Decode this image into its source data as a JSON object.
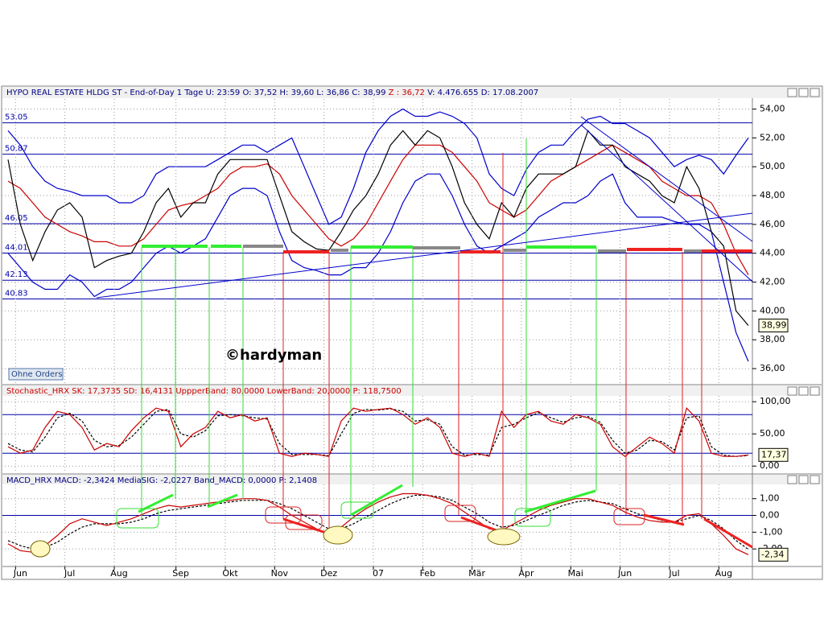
{
  "chart_data": [
    {
      "type": "line",
      "header": "HYPO REAL ESTATE HLDG ST - End-of-Day 1 Tage  U: 23:59  O: 37,52  H: 39,60  L: 36,86  C: 38,99",
      "header_z": "Z : 36,72",
      "header_rest": "V: 4.476.655  D: 17.08.2007",
      "watermark": "©hardyman",
      "button": "Ohne Orders",
      "last_label": "38,99",
      "ylim": [
        35,
        54.7
      ],
      "yticks": [
        {
          "value": 36,
          "label": "36,00"
        },
        {
          "value": 38,
          "label": "38,00"
        },
        {
          "value": 40,
          "label": "40,00"
        },
        {
          "value": 42,
          "label": "42,00"
        },
        {
          "value": 44,
          "label": "44,00"
        },
        {
          "value": 46,
          "label": "46,00"
        },
        {
          "value": 48,
          "label": "48,00"
        },
        {
          "value": 50,
          "label": "50,00"
        },
        {
          "value": 52,
          "label": "52,00"
        },
        {
          "value": 54,
          "label": "54,00"
        }
      ],
      "grid": true,
      "levels": [
        53.05,
        50.87,
        46.05,
        44.01,
        42.13,
        40.83
      ],
      "series": [
        {
          "color": "#0000cc",
          "values": [
            52.5,
            51.5,
            50,
            49,
            48.5,
            48.3,
            48,
            48,
            48,
            47.5,
            47.5,
            48,
            49.5,
            50,
            50,
            50,
            50,
            50.5,
            51,
            51.5,
            51.5,
            51,
            51.5,
            52,
            50,
            48,
            46,
            46.5,
            48.5,
            51,
            52.5,
            53.5,
            54,
            53.5,
            53.5,
            53.8,
            53.5,
            53,
            52,
            49.5,
            48.5,
            48,
            49.8,
            51,
            51.5,
            51.5,
            52.5,
            53.3,
            53.5,
            53,
            53,
            52.5,
            52,
            51,
            50,
            50.5,
            50.8,
            50.5,
            49.5,
            50.8,
            52
          ]
        },
        {
          "color": "#0000cc",
          "values": [
            44,
            43,
            42,
            41.5,
            41.5,
            42.5,
            42,
            41,
            41.5,
            41.5,
            42,
            43,
            44,
            44.5,
            44,
            44.5,
            45,
            46.5,
            48,
            48.5,
            48.5,
            48,
            45.5,
            43.5,
            43,
            42.8,
            42.5,
            42.5,
            43,
            43,
            44,
            45.5,
            47.5,
            49,
            49.5,
            49.5,
            48,
            46,
            44.5,
            44,
            44.5,
            45,
            45.5,
            46.5,
            47,
            47.5,
            47.5,
            48,
            49,
            49.5,
            47.5,
            46.5,
            46.5,
            46.5,
            46.2,
            46,
            46,
            45.5,
            42,
            38.5,
            36.5
          ]
        },
        {
          "color": "#cc0000",
          "values": [
            49,
            48.5,
            47.5,
            46.5,
            46,
            45.5,
            45.2,
            44.8,
            44.8,
            44.5,
            44.5,
            45,
            46,
            47,
            47.3,
            47.5,
            48,
            48.5,
            49.5,
            50,
            50,
            50.2,
            49.5,
            48,
            47,
            46,
            45,
            44.5,
            45,
            46,
            47.5,
            49,
            50.5,
            51.5,
            51.5,
            51.5,
            51,
            50,
            49,
            47.5,
            47,
            46.5,
            47,
            48,
            49,
            49.5,
            50,
            50.5,
            51,
            51.5,
            51,
            50.5,
            50,
            49,
            48.5,
            48,
            48,
            47.5,
            46,
            44,
            42.5
          ]
        },
        {
          "color": "#000000",
          "values": [
            50.5,
            46,
            43.5,
            45.5,
            47,
            47.5,
            46.5,
            43,
            43.5,
            43.8,
            44,
            45.5,
            47.5,
            48.5,
            46.5,
            47.5,
            47.5,
            49.5,
            50.5,
            50.5,
            50.5,
            50.5,
            48,
            45.5,
            44.8,
            44.3,
            44.2,
            45.5,
            47,
            48,
            49.5,
            51.5,
            52.5,
            51.5,
            52.5,
            52,
            50,
            47.5,
            46,
            45,
            47.5,
            46.5,
            48.5,
            49.5,
            49.5,
            49.5,
            50,
            52.5,
            51.5,
            51.5,
            50,
            49.5,
            49,
            48,
            47.5,
            50,
            48.5,
            45.5,
            44.5,
            40,
            38.99
          ]
        }
      ]
    },
    {
      "type": "line",
      "header": "Stochastic_HRX  SK: 17,3735  SD: 16,4131  UppperBand: 80,0000  LowerBand: 20,0000  P: 118,7500",
      "last_label": "17,37",
      "ylim": [
        -11,
        109
      ],
      "yticks": [
        {
          "value": 0,
          "label": "0,00"
        },
        {
          "value": 50,
          "label": "50,00"
        },
        {
          "value": 100,
          "label": "100,00"
        }
      ],
      "grid": true,
      "bands": [
        80,
        20
      ],
      "series": [
        {
          "name": "SD",
          "color": "#000000",
          "dash": true,
          "values": [
            35,
            25,
            22,
            45,
            75,
            82,
            70,
            40,
            30,
            32,
            45,
            65,
            85,
            88,
            50,
            45,
            55,
            78,
            80,
            78,
            75,
            73,
            35,
            18,
            18,
            18,
            16,
            50,
            82,
            88,
            87,
            89,
            85,
            70,
            72,
            65,
            30,
            17,
            18,
            17,
            60,
            65,
            75,
            83,
            75,
            68,
            75,
            77,
            68,
            40,
            20,
            25,
            40,
            38,
            25,
            75,
            78,
            30,
            17,
            15,
            16.4131
          ]
        },
        {
          "name": "SK",
          "color": "#cc0000",
          "dash": false,
          "values": [
            30,
            20,
            25,
            60,
            85,
            80,
            60,
            25,
            35,
            30,
            55,
            75,
            90,
            85,
            30,
            50,
            60,
            85,
            75,
            80,
            70,
            75,
            20,
            15,
            20,
            18,
            15,
            70,
            90,
            85,
            88,
            90,
            80,
            65,
            75,
            60,
            20,
            15,
            20,
            15,
            85,
            60,
            80,
            85,
            70,
            65,
            80,
            75,
            65,
            30,
            15,
            30,
            45,
            35,
            20,
            90,
            70,
            20,
            15,
            15,
            17.3735
          ]
        }
      ]
    },
    {
      "type": "line",
      "header": "MACD_HRX  MACD: -2,3424  MediaSIG: -2,0227  Band_MACD: 0,0000  P: 2,1408",
      "last_label": "-2,34",
      "ylim": [
        -3,
        1.85
      ],
      "yticks": [
        {
          "value": -2,
          "label": "-2,00"
        },
        {
          "value": -1,
          "label": "-1,00"
        },
        {
          "value": 0,
          "label": "0,00"
        },
        {
          "value": 1,
          "label": "1,00"
        }
      ],
      "grid": true,
      "bands": [
        0
      ],
      "categories": [
        null,
        "Jun",
        null,
        null,
        null,
        "Jul",
        null,
        null,
        null,
        "Aug",
        null,
        null,
        null,
        null,
        "Sep",
        null,
        null,
        null,
        "Okt",
        null,
        null,
        null,
        "Nov",
        null,
        null,
        null,
        "Dez",
        null,
        null,
        null,
        "07",
        null,
        null,
        null,
        "Feb",
        null,
        null,
        null,
        "Mär",
        null,
        null,
        null,
        "Apr",
        null,
        null,
        null,
        "Mai",
        null,
        null,
        null,
        "Jun",
        null,
        null,
        null,
        "Jul",
        null,
        null,
        null,
        "Aug",
        null,
        null
      ],
      "series": [
        {
          "name": "MediaSIG",
          "color": "#000000",
          "dash": true,
          "values": [
            -1.5,
            -1.8,
            -2.0,
            -1.9,
            -1.6,
            -1.1,
            -0.7,
            -0.5,
            -0.5,
            -0.5,
            -0.4,
            -0.2,
            0.1,
            0.3,
            0.4,
            0.5,
            0.6,
            0.7,
            0.8,
            0.9,
            0.9,
            0.9,
            0.7,
            0.4,
            0.0,
            -0.4,
            -0.8,
            -0.8,
            -0.5,
            -0.1,
            0.3,
            0.7,
            1.0,
            1.2,
            1.2,
            1.1,
            0.9,
            0.5,
            0.1,
            -0.4,
            -0.7,
            -0.6,
            -0.3,
            0.0,
            0.3,
            0.6,
            0.8,
            0.9,
            0.8,
            0.7,
            0.4,
            0.1,
            -0.1,
            -0.3,
            -0.4,
            -0.2,
            0.0,
            -0.3,
            -0.8,
            -1.5,
            -2.0227
          ]
        },
        {
          "name": "MACD",
          "color": "#cc0000",
          "dash": false,
          "values": [
            -1.7,
            -2.1,
            -2.2,
            -1.8,
            -1.2,
            -0.5,
            -0.2,
            -0.4,
            -0.6,
            -0.4,
            -0.2,
            0.1,
            0.4,
            0.6,
            0.5,
            0.6,
            0.7,
            0.8,
            0.9,
            1.0,
            1.0,
            0.9,
            0.5,
            0.0,
            -0.4,
            -0.8,
            -1.1,
            -0.7,
            -0.1,
            0.4,
            0.8,
            1.1,
            1.3,
            1.3,
            1.2,
            1.0,
            0.7,
            0.2,
            -0.3,
            -0.8,
            -0.9,
            -0.5,
            -0.1,
            0.3,
            0.6,
            0.8,
            1.0,
            1.0,
            0.8,
            0.6,
            0.2,
            -0.1,
            -0.3,
            -0.4,
            -0.4,
            0.0,
            0.1,
            -0.5,
            -1.2,
            -2.0,
            -2.3424
          ]
        }
      ]
    }
  ]
}
